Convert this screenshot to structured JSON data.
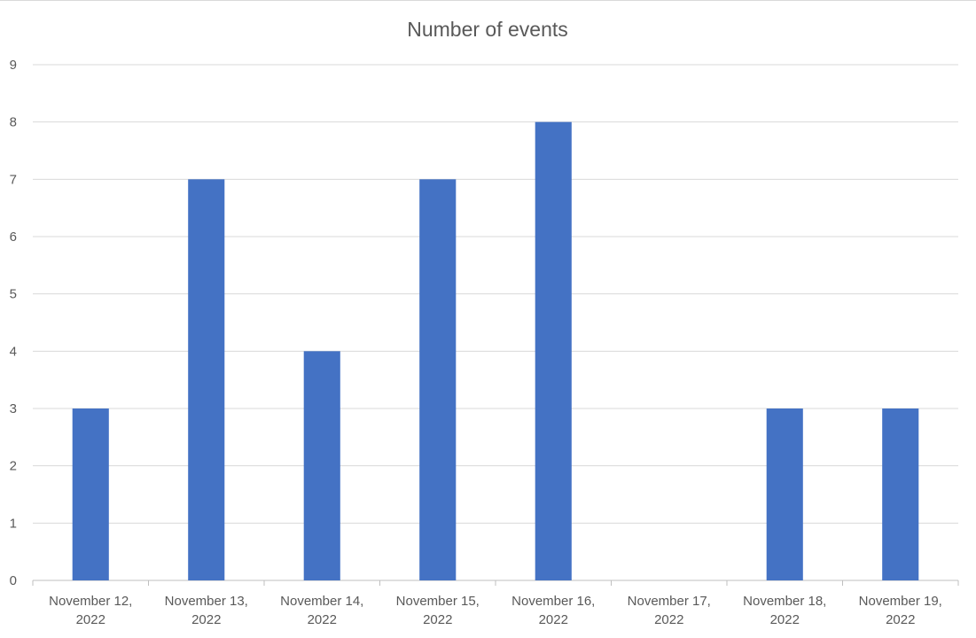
{
  "chart_data": {
    "type": "bar",
    "title": "Number of events",
    "xlabel": "",
    "ylabel": "",
    "categories": [
      [
        "November 12,",
        "2022"
      ],
      [
        "November 13,",
        "2022"
      ],
      [
        "November 14,",
        "2022"
      ],
      [
        "November 15,",
        "2022"
      ],
      [
        "November 16,",
        "2022"
      ],
      [
        "November 17,",
        "2022"
      ],
      [
        "November 18,",
        "2022"
      ],
      [
        "November 19,",
        "2022"
      ]
    ],
    "values": [
      3,
      7,
      4,
      7,
      8,
      0,
      3,
      3
    ],
    "ylim": [
      0,
      9
    ],
    "yticks": [
      0,
      1,
      2,
      3,
      4,
      5,
      6,
      7,
      8,
      9
    ],
    "grid": true,
    "legend": "none",
    "colors": {
      "bar": "#4472C4",
      "grid": "#D9D9D9",
      "text": "#595959"
    }
  }
}
